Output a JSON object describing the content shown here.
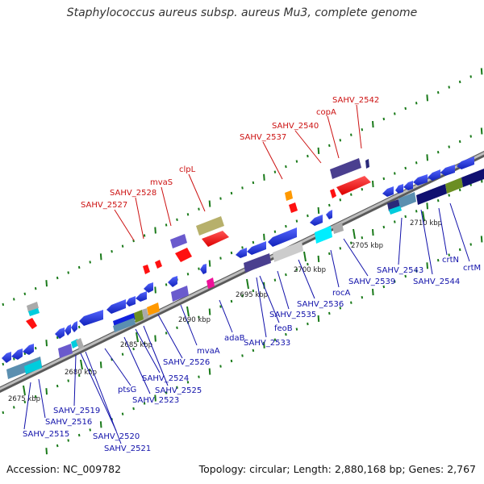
{
  "title": "Staphylococcus aureus subsp. aureus Mu3, complete genome",
  "footer": {
    "accession": "Accession: NC_009782",
    "summary": "Topology: circular; Length: 2,880,168 bp; Genes: 2,767"
  },
  "colors": {
    "backbone": "#8a8a8a",
    "tick": "#1a7a1a",
    "forward_label": "#cc1111",
    "reverse_label": "#1111aa",
    "forward_gene": "#ff1111",
    "reverse_gene": "#1122dd"
  },
  "kbp_ticks": [
    "2675 kbp",
    "2680 kbp",
    "2685 kbp",
    "2690 kbp",
    "2695 kbp",
    "2700 kbp",
    "2705 kbp",
    "2710 kbp"
  ],
  "forward_labels": [
    "SAHV_2527",
    "SAHV_2528",
    "mvaS",
    "clpL",
    "SAHV_2537",
    "SAHV_2540",
    "copA",
    "SAHV_2542"
  ],
  "reverse_labels": [
    "SAHV_2515",
    "SAHV_2516",
    "SAHV_2519",
    "SAHV_2520",
    "SAHV_2521",
    "ptsG",
    "SAHV_2523",
    "SAHV_2524",
    "SAHV_2525",
    "SAHV_2526",
    "mvaA",
    "adaB",
    "SAHV_2533",
    "feoB",
    "SAHV_2535",
    "SAHV_2536",
    "rocA",
    "SAHV_2539",
    "SAHV_2543",
    "SAHV_2544",
    "crtN",
    "crtM"
  ]
}
